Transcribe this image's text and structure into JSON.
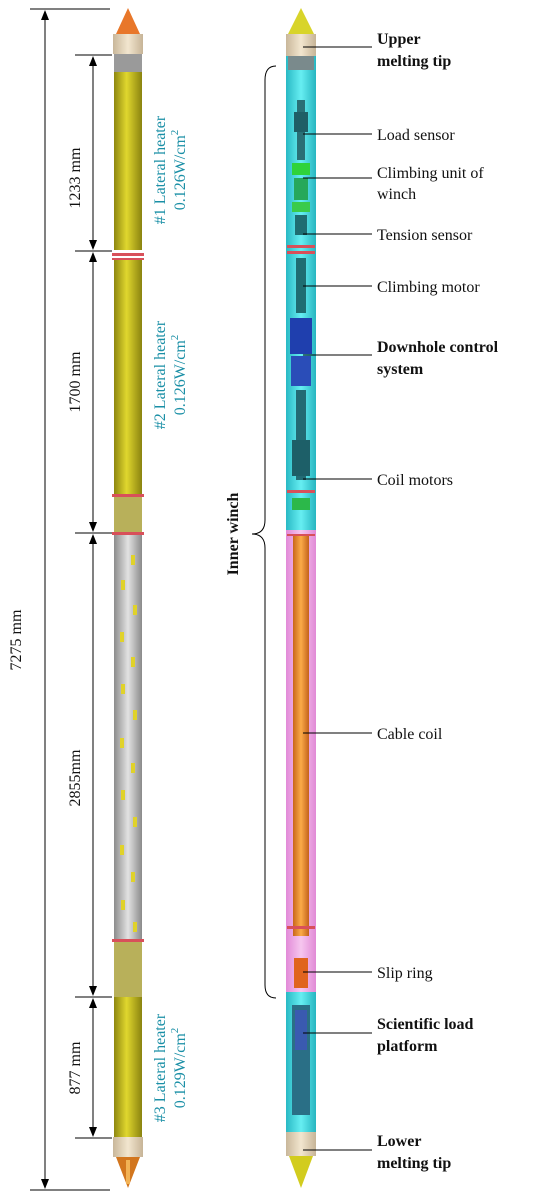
{
  "dimensions": {
    "total": "7275 mm",
    "seg1": "1233 mm",
    "seg2": "1700 mm",
    "seg3": "2855mm",
    "seg4": "877 mm"
  },
  "heaters": {
    "h1_name": "#1 Lateral heater",
    "h1_value": "0.126W/cm",
    "h2_name": "#2 Lateral heater",
    "h2_value": "0.126W/cm",
    "h3_name": "#3 Lateral heater",
    "h3_value": "0.129W/cm",
    "sup": "2"
  },
  "labels": {
    "upper_tip_1": "Upper",
    "upper_tip_2": "melting tip",
    "load_sensor": "Load sensor",
    "climbing_unit_1": "Climbing unit of",
    "climbing_unit_2": "winch",
    "tension_sensor": "Tension sensor",
    "climbing_motor": "Climbing motor",
    "downhole_1": "Downhole control",
    "downhole_2": "system",
    "coil_motors": "Coil motors",
    "cable_coil": "Cable coil",
    "slip_ring": "Slip ring",
    "sci_1": "Scientific load",
    "sci_2": "platform",
    "lower_tip_1": "Lower",
    "lower_tip_2": "melting tip",
    "inner_winch": "Inner winch"
  },
  "colors": {
    "heater_yellow": "#cfc419",
    "winch_cyan": "#4fe3ea",
    "coil_orange": "#f29a2a",
    "tip_orange": "#e8772a",
    "tip_yellow": "#d8d42a",
    "heater_text": "#1a8fa6"
  }
}
